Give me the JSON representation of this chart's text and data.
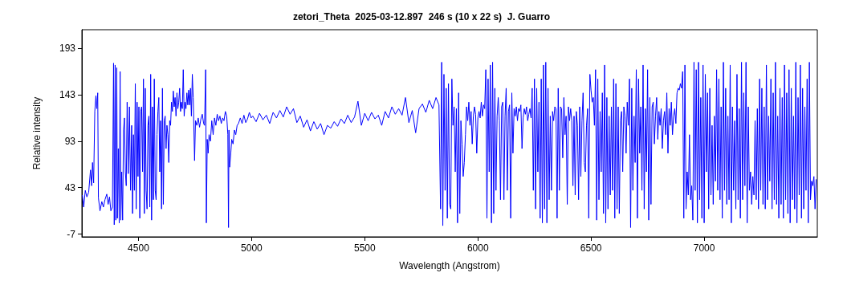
{
  "chart_data": {
    "type": "line",
    "title": "zetori_Theta  2025-03-12.897  246 s (10 x 22 s)  J. Guarro",
    "xlabel": "Wavelength (Angstrom)",
    "ylabel": "Relative intensity",
    "xlim": [
      4250,
      7500
    ],
    "xticks": [
      4500,
      5000,
      5500,
      6000,
      6500,
      7000
    ],
    "ylim": [
      -10,
      213
    ],
    "yticks": [
      -7,
      43,
      93,
      143,
      193
    ],
    "grid": false,
    "marker": "none",
    "line_style": "solid",
    "series": [
      {
        "color": "#0000ff",
        "x": [
          4252,
          4258,
          4265,
          4272,
          4280,
          4288,
          4293,
          4297,
          4302,
          4307,
          4312,
          4316,
          4320,
          4323,
          4330,
          4338,
          4345,
          4352,
          4360,
          4366,
          4372,
          4378,
          4385,
          4390,
          4393,
          4397,
          4400,
          4404,
          4407,
          4411,
          4415,
          4419,
          4422,
          4426,
          4430,
          4434,
          4438,
          4442,
          4446,
          4450,
          4455,
          4460,
          4465,
          4470,
          4474,
          4478,
          4482,
          4486,
          4490,
          4494,
          4498,
          4502,
          4506,
          4510,
          4514,
          4518,
          4522,
          4526,
          4530,
          4534,
          4538,
          4542,
          4546,
          4550,
          4554,
          4558,
          4562,
          4566,
          4570,
          4574,
          4578,
          4582,
          4586,
          4590,
          4594,
          4598,
          4602,
          4606,
          4610,
          4614,
          4618,
          4622,
          4626,
          4630,
          4634,
          4638,
          4642,
          4646,
          4650,
          4654,
          4658,
          4662,
          4666,
          4670,
          4674,
          4678,
          4682,
          4686,
          4690,
          4694,
          4698,
          4702,
          4706,
          4710,
          4714,
          4718,
          4722,
          4726,
          4730,
          4734,
          4738,
          4742,
          4748,
          4752,
          4758,
          4764,
          4770,
          4776,
          4782,
          4788,
          4792,
          4797,
          4800,
          4804,
          4808,
          4812,
          4818,
          4824,
          4830,
          4836,
          4842,
          4848,
          4854,
          4860,
          4866,
          4872,
          4878,
          4884,
          4890,
          4895,
          4898,
          4900,
          4903,
          4908,
          4912,
          4918,
          4924,
          4930,
          4936,
          4942,
          4950,
          4958,
          4966,
          4974,
          4982,
          4990,
          4998,
          5005,
          5020,
          5035,
          5050,
          5065,
          5080,
          5095,
          5110,
          5125,
          5140,
          5155,
          5170,
          5185,
          5200,
          5215,
          5230,
          5245,
          5260,
          5275,
          5290,
          5305,
          5320,
          5335,
          5350,
          5365,
          5380,
          5395,
          5410,
          5425,
          5440,
          5455,
          5470,
          5485,
          5500,
          5515,
          5530,
          5545,
          5560,
          5575,
          5590,
          5605,
          5620,
          5635,
          5650,
          5665,
          5680,
          5695,
          5710,
          5725,
          5740,
          5755,
          5770,
          5785,
          5800,
          5815,
          5828,
          5835,
          5840,
          5845,
          5850,
          5855,
          5860,
          5865,
          5870,
          5875,
          5880,
          5885,
          5890,
          5895,
          5900,
          5905,
          5910,
          5915,
          5920,
          5925,
          5930,
          5935,
          5940,
          5945,
          5950,
          5955,
          5960,
          5965,
          5970,
          5975,
          5980,
          5985,
          5990,
          5995,
          6000,
          6005,
          6010,
          6015,
          6020,
          6025,
          6030,
          6035,
          6040,
          6045,
          6050,
          6055,
          6060,
          6065,
          6070,
          6075,
          6080,
          6085,
          6090,
          6095,
          6100,
          6105,
          6110,
          6115,
          6120,
          6125,
          6130,
          6135,
          6140,
          6145,
          6150,
          6155,
          6160,
          6165,
          6170,
          6175,
          6180,
          6185,
          6190,
          6195,
          6200,
          6205,
          6210,
          6215,
          6220,
          6225,
          6230,
          6235,
          6240,
          6245,
          6250,
          6255,
          6260,
          6265,
          6270,
          6275,
          6280,
          6285,
          6290,
          6295,
          6300,
          6305,
          6310,
          6315,
          6320,
          6325,
          6330,
          6335,
          6340,
          6345,
          6350,
          6355,
          6360,
          6365,
          6370,
          6375,
          6380,
          6385,
          6390,
          6395,
          6400,
          6405,
          6410,
          6415,
          6420,
          6425,
          6430,
          6435,
          6440,
          6445,
          6450,
          6455,
          6460,
          6465,
          6470,
          6475,
          6480,
          6485,
          6490,
          6495,
          6500,
          6505,
          6510,
          6515,
          6520,
          6525,
          6530,
          6535,
          6540,
          6545,
          6550,
          6555,
          6560,
          6565,
          6570,
          6575,
          6580,
          6585,
          6590,
          6595,
          6600,
          6605,
          6610,
          6615,
          6620,
          6625,
          6630,
          6635,
          6640,
          6645,
          6650,
          6655,
          6660,
          6665,
          6670,
          6675,
          6680,
          6685,
          6690,
          6695,
          6700,
          6705,
          6710,
          6715,
          6720,
          6725,
          6730,
          6735,
          6740,
          6745,
          6750,
          6755,
          6760,
          6765,
          6770,
          6775,
          6780,
          6785,
          6790,
          6795,
          6800,
          6805,
          6810,
          6815,
          6820,
          6825,
          6830,
          6835,
          6840,
          6845,
          6850,
          6855,
          6860,
          6865,
          6870,
          6875,
          6880,
          6885,
          6890,
          6895,
          6900,
          6905,
          6910,
          6915,
          6920,
          6925,
          6930,
          6935,
          6940,
          6945,
          6950,
          6955,
          6960,
          6965,
          6970,
          6975,
          6980,
          6985,
          6990,
          6995,
          7000,
          7005,
          7010,
          7015,
          7020,
          7025,
          7030,
          7035,
          7040,
          7045,
          7050,
          7055,
          7060,
          7065,
          7070,
          7075,
          7080,
          7085,
          7090,
          7095,
          7100,
          7105,
          7110,
          7115,
          7120,
          7125,
          7130,
          7135,
          7140,
          7145,
          7150,
          7155,
          7160,
          7165,
          7170,
          7175,
          7180,
          7185,
          7190,
          7195,
          7200,
          7205,
          7210,
          7215,
          7220,
          7225,
          7230,
          7235,
          7240,
          7245,
          7250,
          7255,
          7260,
          7265,
          7270,
          7275,
          7280,
          7285,
          7290,
          7295,
          7300,
          7305,
          7310,
          7315,
          7320,
          7325,
          7330,
          7335,
          7340,
          7345,
          7350,
          7355,
          7360,
          7365,
          7370,
          7375,
          7380,
          7385,
          7390,
          7395,
          7400,
          7405,
          7410,
          7415,
          7420,
          7425,
          7430,
          7435,
          7440,
          7445,
          7450,
          7455,
          7460,
          7465,
          7470,
          7475,
          7480,
          7485,
          7490,
          7495
        ],
        "values": [
          35,
          22,
          40,
          33,
          38,
          62,
          45,
          70,
          48,
          125,
          142,
          128,
          145,
          32,
          18,
          28,
          22,
          30,
          36,
          25,
          33,
          18,
          22,
          177,
          3,
          175,
          8,
          172,
          10,
          85,
          5,
          168,
          8,
          60,
          8,
          105,
          118,
          60,
          45,
          135,
          58,
          130,
          40,
          110,
          15,
          100,
          40,
          155,
          20,
          135,
          55,
          130,
          10,
          125,
          130,
          60,
          160,
          15,
          150,
          40,
          20,
          110,
          120,
          22,
          165,
          8,
          130,
          30,
          160,
          40,
          30,
          100,
          125,
          140,
          60,
          115,
          20,
          150,
          25,
          115,
          120,
          85,
          110,
          100,
          70,
          115,
          110,
          135,
          125,
          147,
          130,
          140,
          120,
          145,
          128,
          135,
          150,
          125,
          135,
          128,
          170,
          120,
          135,
          128,
          145,
          132,
          148,
          132,
          150,
          120,
          165,
          140,
          72,
          115,
          110,
          118,
          108,
          117,
          122,
          112,
          110,
          170,
          5,
          95,
          80,
          100,
          93,
          115,
          100,
          118,
          110,
          122,
          115,
          120,
          112,
          118,
          115,
          125,
          120,
          100,
          0,
          105,
          65,
          80,
          95,
          90,
          105,
          100,
          110,
          112,
          118,
          112,
          121,
          113,
          117,
          124,
          118,
          120,
          114,
          123,
          116,
          121,
          112,
          124,
          118,
          126,
          119,
          130,
          122,
          128,
          113,
          120,
          108,
          116,
          104,
          114,
          106,
          112,
          100,
          110,
          107,
          114,
          109,
          117,
          112,
          121,
          113,
          119,
          136,
          110,
          123,
          115,
          124,
          117,
          121,
          110,
          125,
          118,
          130,
          122,
          128,
          121,
          140,
          113,
          126,
          102,
          128,
          133,
          124,
          137,
          128,
          140,
          132,
          20,
          178,
          2,
          165,
          40,
          150,
          10,
          155,
          25,
          20,
          160,
          110,
          130,
          60,
          128,
          5,
          145,
          15,
          115,
          90,
          55,
          70,
          100,
          130,
          115,
          135,
          110,
          125,
          90,
          120,
          130,
          122,
          80,
          118,
          125,
          118,
          135,
          120,
          132,
          128,
          170,
          10,
          160,
          60,
          175,
          5,
          178,
          15,
          150,
          40,
          120,
          140,
          115,
          30,
          130,
          135,
          30,
          120,
          150,
          40,
          125,
          132,
          10,
          145,
          80,
          128,
          120,
          130,
          115,
          128,
          125,
          132,
          85,
          118,
          128,
          122,
          130,
          115,
          122,
          128,
          118,
          150,
          40,
          160,
          20,
          150,
          60,
          135,
          10,
          160,
          5,
          175,
          20,
          178,
          5,
          150,
          30,
          120,
          40,
          125,
          115,
          130,
          128,
          10,
          150,
          40,
          130,
          128,
          75,
          140,
          100,
          120,
          25,
          130,
          115,
          128,
          115,
          45,
          120,
          35,
          125,
          110,
          30,
          130,
          55,
          115,
          145,
          70,
          60,
          110,
          128,
          10,
          165,
          148,
          135,
          140,
          110,
          170,
          8,
          160,
          30,
          125,
          60,
          145,
          15,
          175,
          5,
          140,
          20,
          120,
          35,
          130,
          40,
          160,
          10,
          155,
          20,
          130,
          15,
          115,
          125,
          60,
          130,
          120,
          80,
          135,
          110,
          160,
          0,
          150,
          40,
          120,
          70,
          170,
          10,
          160,
          80,
          130,
          40,
          175,
          20,
          128,
          60,
          170,
          8,
          140,
          25,
          130,
          135,
          90,
          120,
          140,
          95,
          125,
          110,
          128,
          85,
          115,
          125,
          100,
          145,
          80,
          128,
          110,
          135,
          100,
          120,
          128,
          112,
          145,
          150,
          148,
          155,
          150,
          168,
          10,
          175,
          20,
          60,
          35,
          100,
          30,
          45,
          8,
          178,
          40,
          170,
          5,
          178,
          30,
          140,
          10,
          175,
          5,
          165,
          60,
          145,
          20,
          150,
          35,
          110,
          25,
          120,
          50,
          170,
          40,
          160,
          30,
          130,
          10,
          178,
          40,
          150,
          25,
          120,
          30,
          175,
          5,
          130,
          40,
          115,
          20,
          165,
          30,
          128,
          10,
          178,
          30,
          145,
          45,
          178,
          5,
          130,
          40,
          60,
          25,
          55,
          35,
          115,
          30,
          128,
          20,
          160,
          40,
          150,
          25,
          130,
          20,
          175,
          30,
          120,
          50,
          160,
          20,
          145,
          30,
          178,
          25,
          120,
          10,
          150,
          25,
          140,
          10,
          175,
          30,
          145,
          15,
          170,
          5,
          150,
          30,
          120,
          20,
          178,
          5,
          140,
          35,
          175,
          10,
          150,
          20,
          130,
          40,
          160,
          5,
          178,
          30,
          50,
          45,
          55,
          20,
          52
        ]
      }
    ]
  }
}
